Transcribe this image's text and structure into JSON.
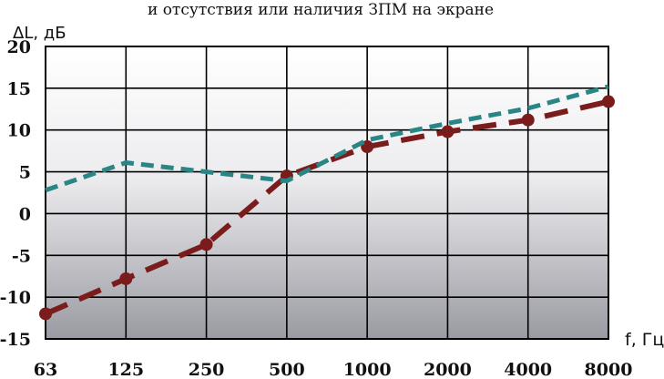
{
  "chart_data": {
    "type": "line",
    "title": "и отсутствия или наличия ЗПМ на экране",
    "xlabel": "f, Гц",
    "ylabel": "ΔL, дБ",
    "categories": [
      "63",
      "125",
      "250",
      "500",
      "1000",
      "2000",
      "4000",
      "8000"
    ],
    "ylim": [
      -15,
      20
    ],
    "yticks": [
      20,
      15,
      10,
      5,
      0,
      -5,
      -10,
      -15
    ],
    "grid": true,
    "legend": "none",
    "series": [
      {
        "color": "#7b1c1c",
        "values": [
          -12,
          -7.8,
          -3.7,
          4.5,
          8,
          9.8,
          11.2,
          13.4
        ],
        "markers": true,
        "dash": "long"
      },
      {
        "color": "#2a8585",
        "values": [
          2.8,
          6.1,
          5.0,
          3.9,
          8.8,
          10.8,
          12.6,
          15.2
        ],
        "markers": false,
        "dash": "short"
      }
    ]
  }
}
